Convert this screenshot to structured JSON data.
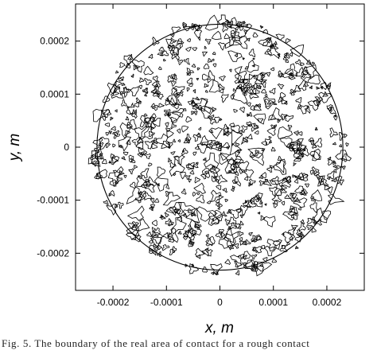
{
  "chart_data": {
    "type": "contour",
    "xlabel": "x, m",
    "ylabel": "y, m",
    "xlim": [
      -0.00027,
      0.00027
    ],
    "ylim": [
      -0.00027,
      0.00027
    ],
    "x_ticks": [
      "-0.0002",
      "-0.0001",
      "0",
      "0.0001",
      "0.0002"
    ],
    "y_ticks": [
      "0.0002",
      "0.0001",
      "0",
      "-0.0001",
      "-0.0002"
    ],
    "x_tick_values": [
      -0.0002,
      -0.0001,
      0,
      0.0001,
      0.0002
    ],
    "y_tick_values": [
      0.0002,
      0.0001,
      0,
      -0.0001,
      -0.0002
    ],
    "nominal_contact_radius": 0.00023,
    "grid": false,
    "line_color": "#000000"
  },
  "caption": "Fig. 5. The boundary of the real area of contact for a rough contact"
}
